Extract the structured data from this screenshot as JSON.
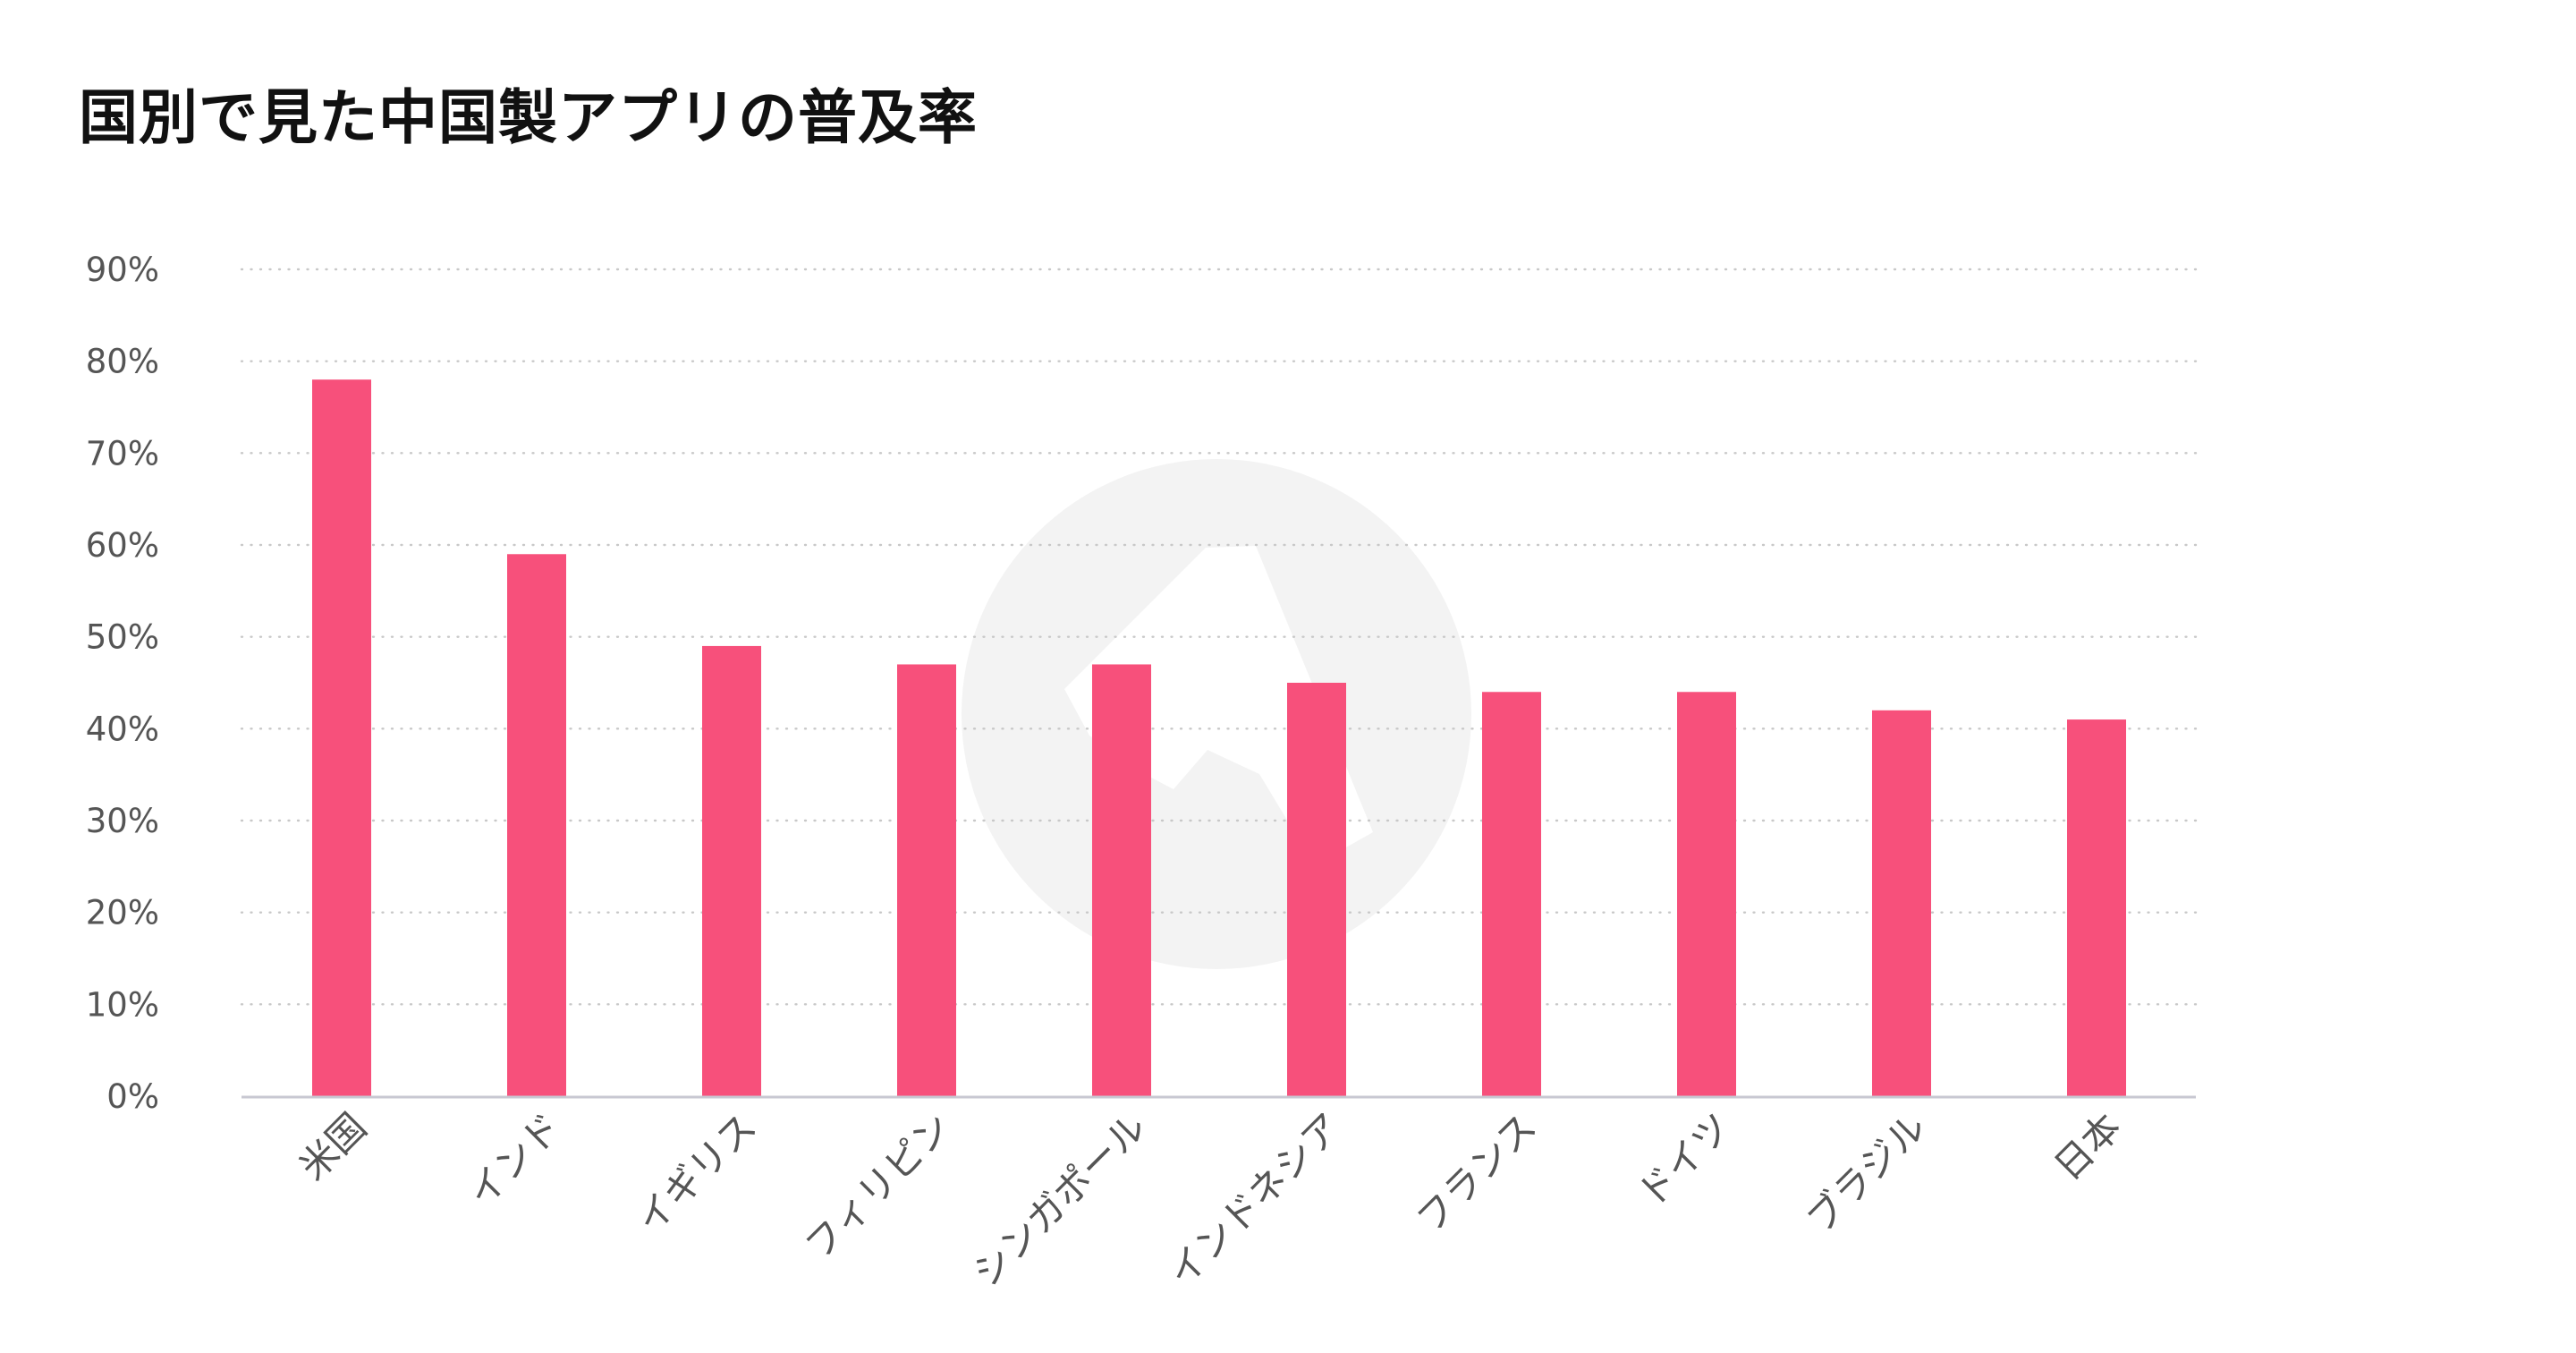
{
  "chart_data": {
    "type": "bar",
    "title": "国別で見た中国製アプリの普及率",
    "categories": [
      "米国",
      "インド",
      "イギリス",
      "フィリピン",
      "シンガポール",
      "インドネシア",
      "フランス",
      "ドイツ",
      "ブラジル",
      "日本"
    ],
    "values": [
      78,
      59,
      49,
      47,
      47,
      45,
      44,
      44,
      42,
      41
    ],
    "ylim": [
      0,
      90
    ],
    "yticks": [
      "0%",
      "10%",
      "20%",
      "30%",
      "40%",
      "50%",
      "60%",
      "70%",
      "80%",
      "90%"
    ],
    "ytick_step": 10,
    "xlabel": "",
    "ylabel": "",
    "grid": true,
    "legend": "none",
    "colors": {
      "bar": "#F7507B",
      "grid": "#C8C8C8",
      "axis": "#C8C8D2",
      "watermark": "#F3F3F3"
    }
  }
}
